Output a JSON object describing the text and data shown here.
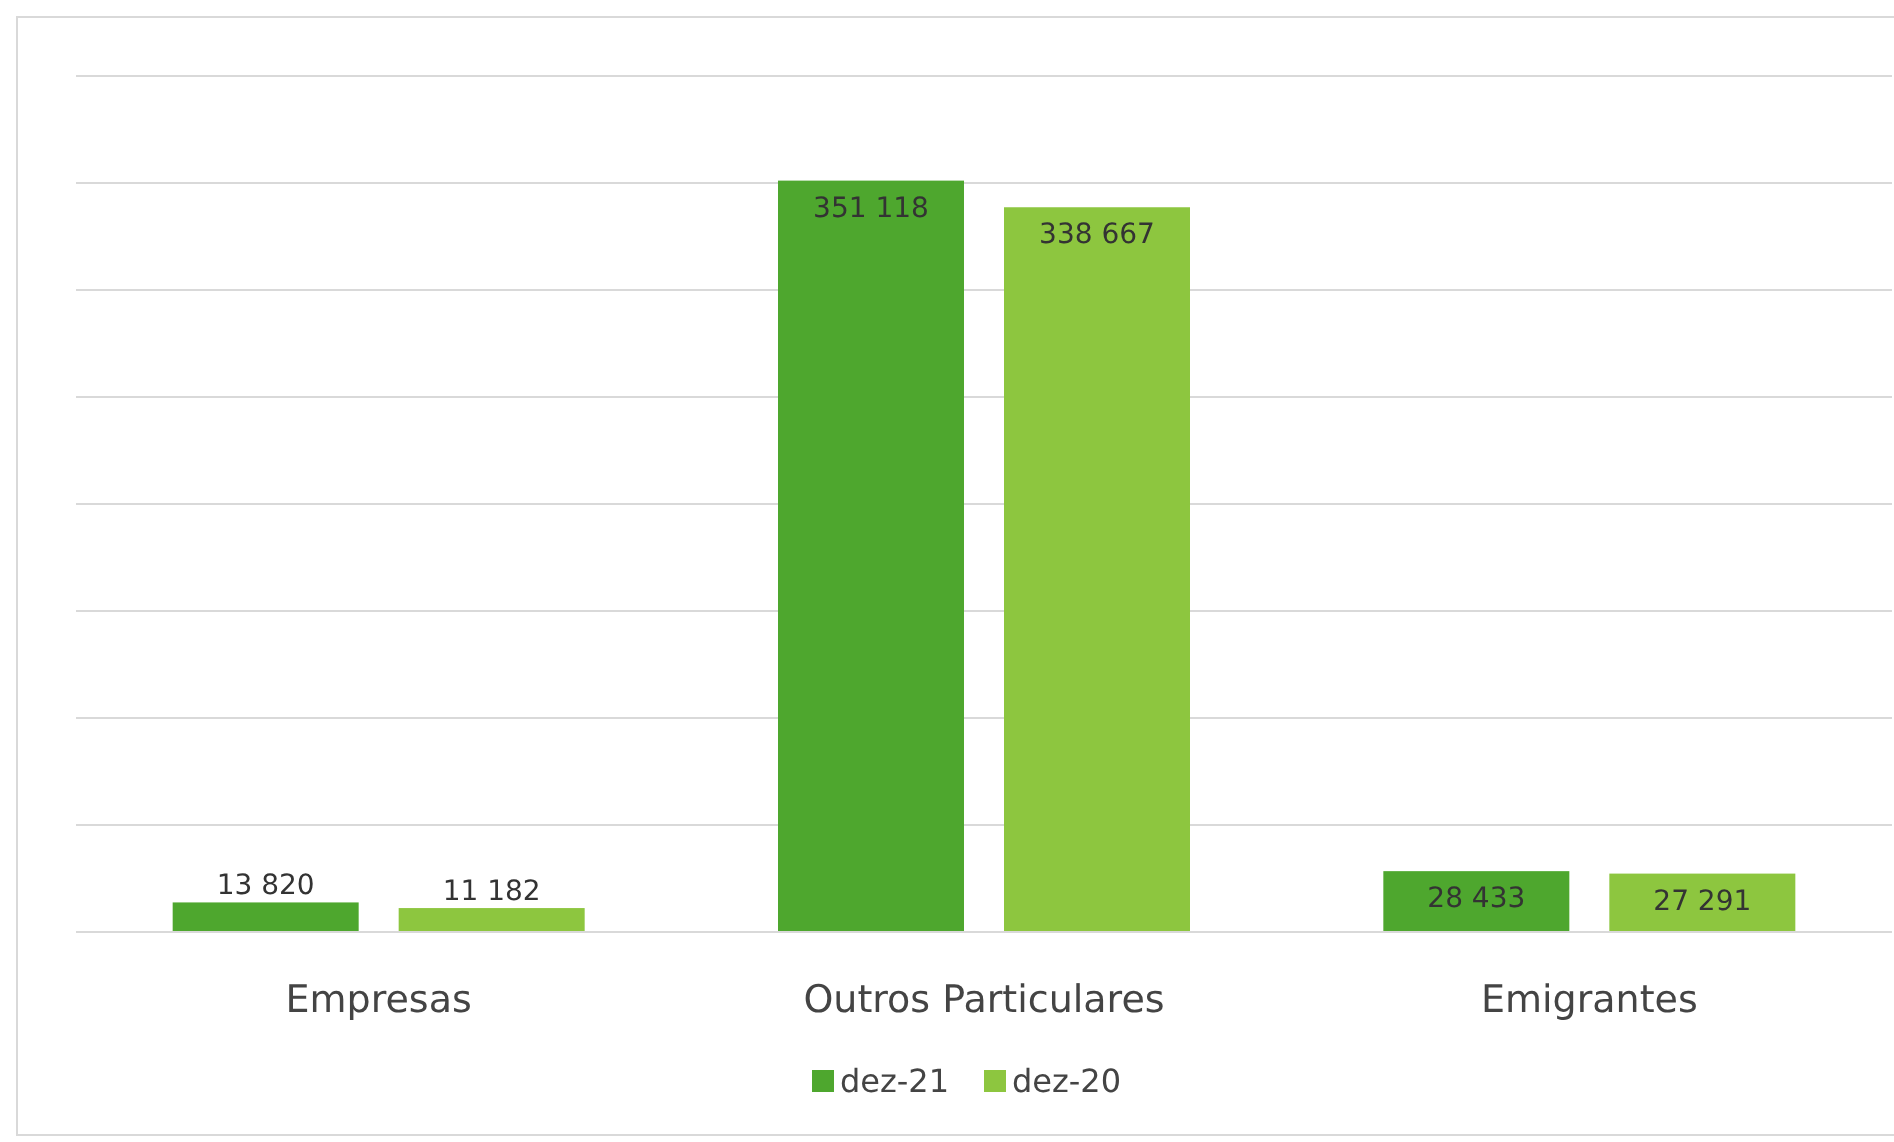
{
  "chart_data": {
    "type": "bar",
    "categories": [
      "Empresas",
      "Outros Particulares",
      "Emigrantes"
    ],
    "series": [
      {
        "name": "dez-21",
        "color": "#4ea72e",
        "values": [
          13820,
          351118,
          28433
        ],
        "value_labels": [
          "13 820",
          "351 118",
          "28 433"
        ]
      },
      {
        "name": "dez-20",
        "color": "#8dc63f",
        "values": [
          11182,
          338667,
          27291
        ],
        "value_labels": [
          "11 182",
          "338 667",
          "27 291"
        ]
      }
    ],
    "ylim": [
      0,
      400000
    ],
    "yticks": [
      {
        "value": 0,
        "label": null
      },
      {
        "value": 50000,
        "label": null
      },
      {
        "value": 100000,
        "label": null
      },
      {
        "value": 150000,
        "label": null
      },
      {
        "value": 200000,
        "label": null
      },
      {
        "value": 250000,
        "label": null
      },
      {
        "value": 300000,
        "label": null
      },
      {
        "value": 350000,
        "label": null
      },
      {
        "value": 400000,
        "label": null
      }
    ],
    "grid": "y",
    "legend": "bottom",
    "tick_labels": "x"
  }
}
